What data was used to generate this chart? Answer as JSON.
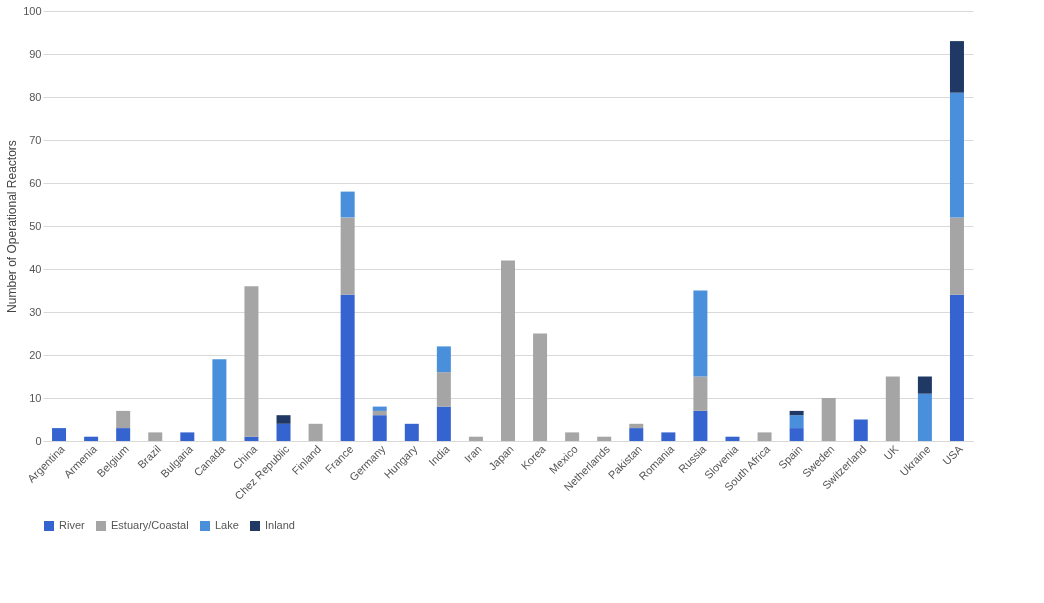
{
  "chart_data": {
    "type": "bar",
    "stacked": true,
    "ylabel": "Number of Operational Reactors",
    "categories": [
      "Argentina",
      "Armenia",
      "Belgium",
      "Brazil",
      "Bulgaria",
      "Canada",
      "China",
      "Chez Republic",
      "Finland",
      "France",
      "Germany",
      "Hungary",
      "India",
      "Iran",
      "Japan",
      "Korea",
      "Mexico",
      "Netherlands",
      "Pakistan",
      "Romania",
      "Russia",
      "Slovenia",
      "South Africa",
      "Spain",
      "Sweden",
      "Switzerland",
      "UK",
      "Ukraine",
      "USA"
    ],
    "series": [
      {
        "name": "River",
        "color": "#3563d0",
        "values": [
          3,
          1,
          3,
          0,
          2,
          0,
          1,
          4,
          0,
          34,
          6,
          4,
          8,
          0,
          0,
          0,
          0,
          0,
          3,
          2,
          7,
          1,
          0,
          3,
          0,
          5,
          0,
          0,
          34
        ]
      },
      {
        "name": "Estuary/Coastal",
        "color": "#a5a5a5",
        "values": [
          0,
          0,
          4,
          2,
          0,
          0,
          35,
          0,
          4,
          18,
          1,
          0,
          8,
          1,
          42,
          25,
          2,
          1,
          1,
          0,
          8,
          0,
          2,
          0,
          10,
          0,
          15,
          0,
          18
        ]
      },
      {
        "name": "Lake",
        "color": "#4a8fdb",
        "values": [
          0,
          0,
          0,
          0,
          0,
          19,
          0,
          0,
          0,
          6,
          1,
          0,
          6,
          0,
          0,
          0,
          0,
          0,
          0,
          0,
          20,
          0,
          0,
          3,
          0,
          0,
          0,
          11,
          29
        ]
      },
      {
        "name": "Inland",
        "color": "#1f3864",
        "values": [
          0,
          0,
          0,
          0,
          0,
          0,
          0,
          2,
          0,
          0,
          0,
          0,
          0,
          0,
          0,
          0,
          0,
          0,
          0,
          0,
          0,
          0,
          0,
          1,
          0,
          0,
          0,
          4,
          12
        ]
      }
    ],
    "ylim": [
      0,
      100
    ],
    "yticks": [
      0,
      10,
      20,
      30,
      40,
      50,
      60,
      70,
      80,
      90,
      100
    ],
    "grid": "y",
    "legend": "bottom"
  }
}
